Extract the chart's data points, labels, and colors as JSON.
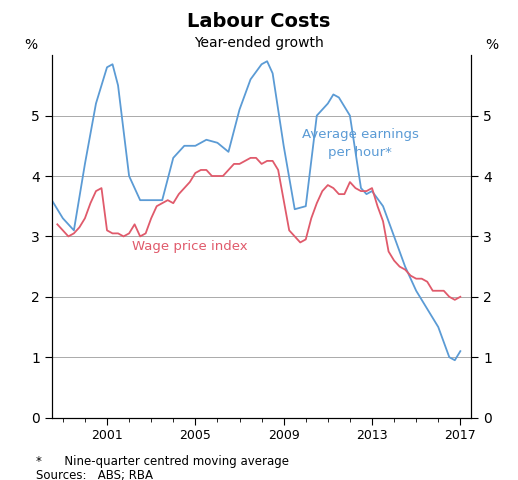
{
  "title": "Labour Costs",
  "subtitle": "Year-ended growth",
  "footnote": "*      Nine-quarter centred moving average",
  "sources": "Sources:   ABS; RBA",
  "ylim": [
    0,
    6
  ],
  "yticks": [
    0,
    1,
    2,
    3,
    4,
    5
  ],
  "ylabel": "%",
  "bg_color": "#ffffff",
  "grid_color": "#aaaaaa",
  "aei_color": "#5b9bd5",
  "wpi_color": "#e05a6b",
  "aei_label": "Average earnings\nper hour*",
  "wpi_label": "Wage price index",
  "aei_data": {
    "dates": [
      1998.5,
      1999.0,
      1999.5,
      2000.0,
      2000.5,
      2001.0,
      2001.25,
      2001.5,
      2002.0,
      2002.5,
      2003.0,
      2003.5,
      2004.0,
      2004.5,
      2005.0,
      2005.25,
      2005.5,
      2006.0,
      2006.5,
      2007.0,
      2007.5,
      2008.0,
      2008.25,
      2008.5,
      2009.0,
      2009.5,
      2010.0,
      2010.5,
      2011.0,
      2011.25,
      2011.5,
      2012.0,
      2012.5,
      2012.75,
      2013.0,
      2013.5,
      2014.0,
      2014.5,
      2015.0,
      2015.5,
      2016.0,
      2016.5,
      2016.75,
      2017.0
    ],
    "values": [
      3.6,
      3.3,
      3.1,
      4.2,
      5.2,
      5.8,
      5.85,
      5.5,
      4.0,
      3.6,
      3.6,
      3.6,
      4.3,
      4.5,
      4.5,
      4.55,
      4.6,
      4.55,
      4.4,
      5.1,
      5.6,
      5.85,
      5.9,
      5.7,
      4.5,
      3.45,
      3.5,
      5.0,
      5.2,
      5.35,
      5.3,
      5.0,
      3.8,
      3.7,
      3.75,
      3.5,
      3.0,
      2.5,
      2.1,
      1.8,
      1.5,
      1.0,
      0.95,
      1.1
    ]
  },
  "wpi_data": {
    "dates": [
      1998.75,
      1999.0,
      1999.25,
      1999.5,
      1999.75,
      2000.0,
      2000.25,
      2000.5,
      2000.75,
      2001.0,
      2001.25,
      2001.5,
      2001.75,
      2002.0,
      2002.25,
      2002.5,
      2002.75,
      2003.0,
      2003.25,
      2003.5,
      2003.75,
      2004.0,
      2004.25,
      2004.5,
      2004.75,
      2005.0,
      2005.25,
      2005.5,
      2005.75,
      2006.0,
      2006.25,
      2006.5,
      2006.75,
      2007.0,
      2007.25,
      2007.5,
      2007.75,
      2008.0,
      2008.25,
      2008.5,
      2008.75,
      2009.0,
      2009.25,
      2009.5,
      2009.75,
      2010.0,
      2010.25,
      2010.5,
      2010.75,
      2011.0,
      2011.25,
      2011.5,
      2011.75,
      2012.0,
      2012.25,
      2012.5,
      2012.75,
      2013.0,
      2013.25,
      2013.5,
      2013.75,
      2014.0,
      2014.25,
      2014.5,
      2014.75,
      2015.0,
      2015.25,
      2015.5,
      2015.75,
      2016.0,
      2016.25,
      2016.5,
      2016.75,
      2017.0
    ],
    "values": [
      3.2,
      3.1,
      3.0,
      3.05,
      3.15,
      3.3,
      3.55,
      3.75,
      3.8,
      3.1,
      3.05,
      3.05,
      3.0,
      3.05,
      3.2,
      3.0,
      3.05,
      3.3,
      3.5,
      3.55,
      3.6,
      3.55,
      3.7,
      3.8,
      3.9,
      4.05,
      4.1,
      4.1,
      4.0,
      4.0,
      4.0,
      4.1,
      4.2,
      4.2,
      4.25,
      4.3,
      4.3,
      4.2,
      4.25,
      4.25,
      4.1,
      3.6,
      3.1,
      3.0,
      2.9,
      2.95,
      3.3,
      3.55,
      3.75,
      3.85,
      3.8,
      3.7,
      3.7,
      3.9,
      3.8,
      3.75,
      3.75,
      3.8,
      3.5,
      3.25,
      2.75,
      2.6,
      2.5,
      2.45,
      2.35,
      2.3,
      2.3,
      2.25,
      2.1,
      2.1,
      2.1,
      2.0,
      1.95,
      2.0
    ]
  },
  "xtick_major": [
    2001,
    2005,
    2009,
    2013,
    2017
  ],
  "xtick_minor_step": 1,
  "xlim_start": 1998.5,
  "xlim_end": 2017.5
}
